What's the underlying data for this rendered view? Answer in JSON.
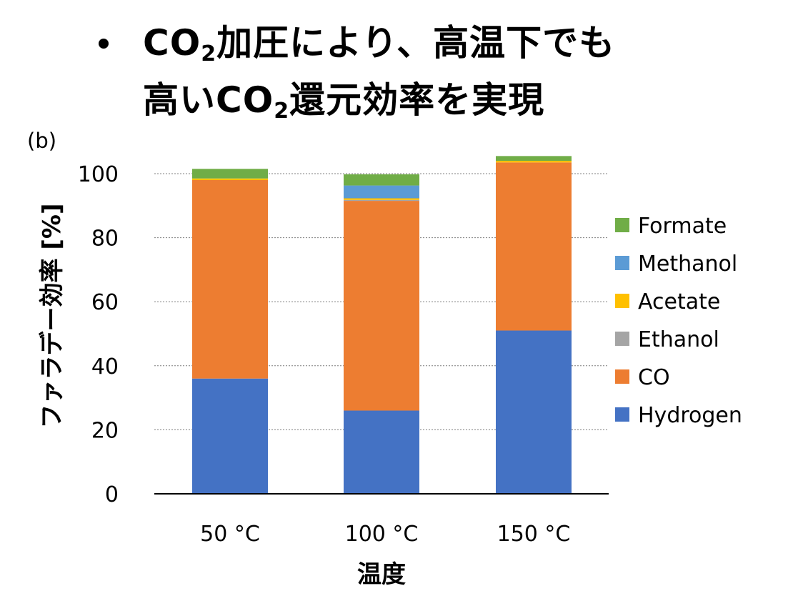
{
  "headline": {
    "line1_before_sub": "CO",
    "line1_sub": "2",
    "line1_after_sub": "加圧により、高温下でも",
    "line2_before_sub": "高いCO",
    "line2_sub": "2",
    "line2_after_sub": "還元効率を実現"
  },
  "panel_label": "(b)",
  "colors": {
    "Formate": "#70ad47",
    "Methanol": "#5b9bd5",
    "Acetate": "#ffc000",
    "Ethanol": "#a5a5a5",
    "CO": "#ed7d31",
    "Hydrogen": "#4472c4"
  },
  "chart_data": {
    "type": "bar",
    "stacked": true,
    "categories": [
      "50 °C",
      "100 °C",
      "150 °C"
    ],
    "xlabel": "温度",
    "ylabel": "ファラデー効率 [%]",
    "ylim": [
      0,
      100
    ],
    "yticks": [
      0,
      20,
      40,
      60,
      80,
      100
    ],
    "grid": "horizontal-dotted",
    "legend_position": "right",
    "series": [
      {
        "name": "Hydrogen",
        "values": [
          36,
          26,
          51
        ]
      },
      {
        "name": "CO",
        "values": [
          62,
          65.5,
          52.5
        ]
      },
      {
        "name": "Ethanol",
        "values": [
          0,
          0.3,
          0
        ]
      },
      {
        "name": "Acetate",
        "values": [
          0.5,
          0.5,
          0.5
        ]
      },
      {
        "name": "Methanol",
        "values": [
          0,
          4,
          0
        ]
      },
      {
        "name": "Formate",
        "values": [
          3,
          3.5,
          1.5
        ]
      }
    ],
    "legend_order": [
      "Formate",
      "Methanol",
      "Acetate",
      "Ethanol",
      "CO",
      "Hydrogen"
    ]
  }
}
